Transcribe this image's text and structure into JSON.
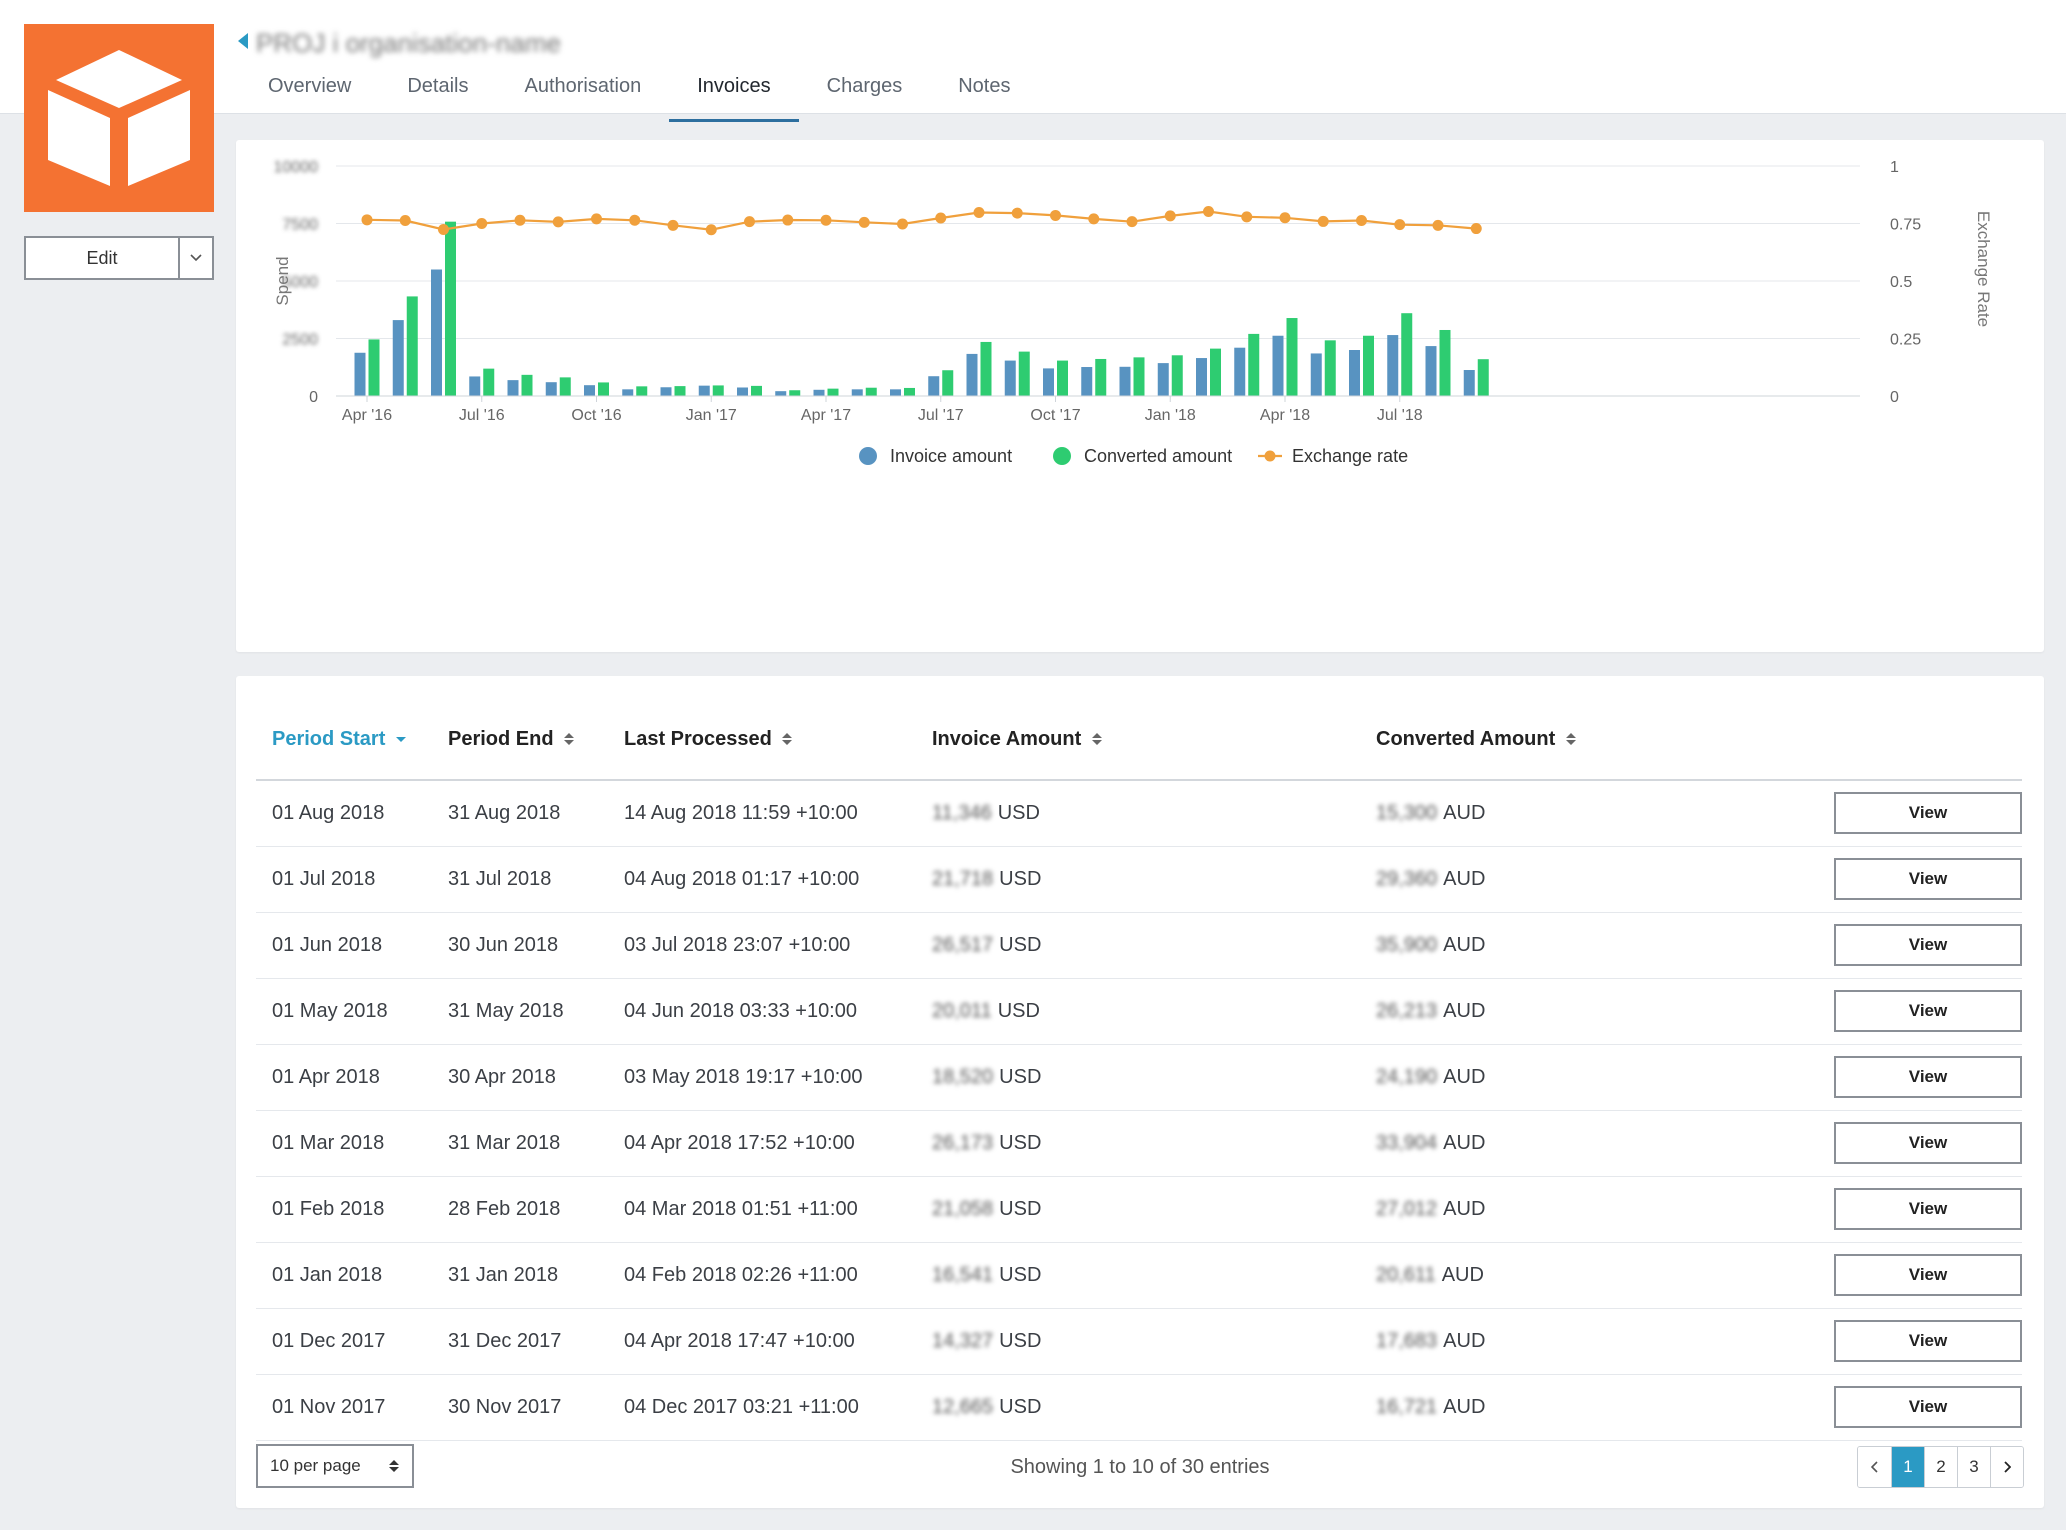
{
  "header": {
    "title_obscured": "PROJ i organisation-name",
    "tabs": [
      {
        "label": "Overview",
        "active": false
      },
      {
        "label": "Details",
        "active": false
      },
      {
        "label": "Authorisation",
        "active": false
      },
      {
        "label": "Invoices",
        "active": true
      },
      {
        "label": "Charges",
        "active": false
      },
      {
        "label": "Notes",
        "active": false
      }
    ]
  },
  "logo": {
    "icon": "box-icon",
    "color": "#f47232"
  },
  "edit": {
    "label": "Edit"
  },
  "colors": {
    "invoice": "#5893c1",
    "converted": "#2ecc71",
    "exchange": "#f0a03c",
    "accent": "#2b9ac4"
  },
  "chart_data": {
    "type": "bar",
    "x_tick_labels": [
      "Apr '16",
      "Jul '16",
      "Oct '16",
      "Jan '17",
      "Apr '17",
      "Jul '17",
      "Oct '17",
      "Jan '18",
      "Apr '18",
      "Jul '18"
    ],
    "left_axis": {
      "label": "Spend",
      "ticks": [
        "0",
        "2500",
        "5000",
        "7500",
        "10000"
      ],
      "ticks_obscured": true,
      "ylim": [
        0,
        10000
      ]
    },
    "right_axis": {
      "label": "Exchange Rate",
      "ticks": [
        "0",
        "0.25",
        "0.5",
        "0.75",
        "1"
      ],
      "ylim": [
        0,
        1
      ]
    },
    "series": [
      {
        "name": "Invoice amount",
        "type": "bar",
        "values": [
          1880,
          3300,
          5500,
          850,
          690,
          600,
          470,
          290,
          380,
          450,
          370,
          210,
          270,
          290,
          290,
          860,
          1830,
          1540,
          1200,
          1260,
          1270,
          1430,
          1650,
          2100,
          2620,
          1850,
          2000,
          2650,
          2170,
          1130
        ]
      },
      {
        "name": "Converted amount",
        "type": "bar",
        "values": [
          2460,
          4330,
          7580,
          1190,
          920,
          810,
          590,
          420,
          430,
          460,
          440,
          250,
          320,
          360,
          350,
          1120,
          2350,
          1930,
          1540,
          1610,
          1680,
          1770,
          2060,
          2700,
          3390,
          2420,
          2620,
          3600,
          2870,
          1600
        ]
      },
      {
        "name": "Exchange rate",
        "type": "line",
        "axis": "right",
        "values": [
          0.766,
          0.763,
          0.724,
          0.75,
          0.764,
          0.757,
          0.77,
          0.764,
          0.742,
          0.723,
          0.758,
          0.765,
          0.764,
          0.755,
          0.748,
          0.774,
          0.798,
          0.795,
          0.785,
          0.77,
          0.758,
          0.783,
          0.802,
          0.779,
          0.775,
          0.759,
          0.763,
          0.745,
          0.742,
          0.728
        ]
      }
    ],
    "legend": [
      "Invoice amount",
      "Converted amount",
      "Exchange rate"
    ],
    "legend_position": "bottom"
  },
  "table": {
    "columns": [
      {
        "label": "Period Start",
        "sorted": true
      },
      {
        "label": "Period End",
        "sorted": false
      },
      {
        "label": "Last Processed",
        "sorted": false
      },
      {
        "label": "Invoice Amount",
        "sorted": false
      },
      {
        "label": "Converted Amount",
        "sorted": false
      }
    ],
    "view_label": "View",
    "rows": [
      {
        "start": "01 Aug 2018",
        "end": "31 Aug 2018",
        "processed": "14 Aug 2018 11:59 +10:00",
        "invoice_obscured": "11,346",
        "invoice_currency": "USD",
        "converted_obscured": "15,300",
        "converted_currency": "AUD"
      },
      {
        "start": "01 Jul 2018",
        "end": "31 Jul 2018",
        "processed": "04 Aug 2018 01:17 +10:00",
        "invoice_obscured": "21,718",
        "invoice_currency": "USD",
        "converted_obscured": "29,360",
        "converted_currency": "AUD"
      },
      {
        "start": "01 Jun 2018",
        "end": "30 Jun 2018",
        "processed": "03 Jul 2018 23:07 +10:00",
        "invoice_obscured": "26,517",
        "invoice_currency": "USD",
        "converted_obscured": "35,900",
        "converted_currency": "AUD"
      },
      {
        "start": "01 May 2018",
        "end": "31 May 2018",
        "processed": "04 Jun 2018 03:33 +10:00",
        "invoice_obscured": "20,011",
        "invoice_currency": "USD",
        "converted_obscured": "26,213",
        "converted_currency": "AUD"
      },
      {
        "start": "01 Apr 2018",
        "end": "30 Apr 2018",
        "processed": "03 May 2018 19:17 +10:00",
        "invoice_obscured": "18,520",
        "invoice_currency": "USD",
        "converted_obscured": "24,190",
        "converted_currency": "AUD"
      },
      {
        "start": "01 Mar 2018",
        "end": "31 Mar 2018",
        "processed": "04 Apr 2018 17:52 +10:00",
        "invoice_obscured": "26,173",
        "invoice_currency": "USD",
        "converted_obscured": "33,904",
        "converted_currency": "AUD"
      },
      {
        "start": "01 Feb 2018",
        "end": "28 Feb 2018",
        "processed": "04 Mar 2018 01:51 +11:00",
        "invoice_obscured": "21,058",
        "invoice_currency": "USD",
        "converted_obscured": "27,012",
        "converted_currency": "AUD"
      },
      {
        "start": "01 Jan 2018",
        "end": "31 Jan 2018",
        "processed": "04 Feb 2018 02:26 +11:00",
        "invoice_obscured": "16,541",
        "invoice_currency": "USD",
        "converted_obscured": "20,611",
        "converted_currency": "AUD"
      },
      {
        "start": "01 Dec 2017",
        "end": "31 Dec 2017",
        "processed": "04 Apr 2018 17:47 +10:00",
        "invoice_obscured": "14,327",
        "invoice_currency": "USD",
        "converted_obscured": "17,683",
        "converted_currency": "AUD"
      },
      {
        "start": "01 Nov 2017",
        "end": "30 Nov 2017",
        "processed": "04 Dec 2017 03:21 +11:00",
        "invoice_obscured": "12,665",
        "invoice_currency": "USD",
        "converted_obscured": "16,721",
        "converted_currency": "AUD"
      }
    ]
  },
  "footer": {
    "per_page": "10 per page",
    "showing": "Showing 1 to 10 of 30 entries",
    "pages": [
      "1",
      "2",
      "3"
    ],
    "current_page": "1"
  }
}
